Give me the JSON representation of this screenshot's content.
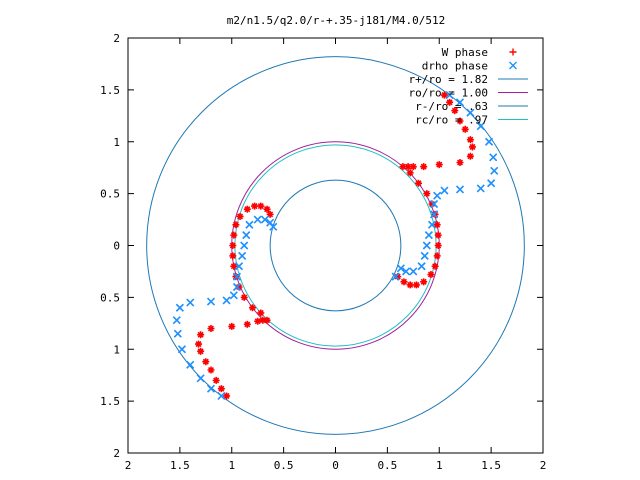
{
  "chart_data": {
    "type": "scatter",
    "title": "m2/n1.5/q2.0/r-+.35-j181/M4.0/512",
    "xlim": [
      -2,
      2
    ],
    "ylim": [
      -2,
      2
    ],
    "x_ticks": [
      {
        "value": -2,
        "label": "2"
      },
      {
        "value": -1.5,
        "label": "1.5"
      },
      {
        "value": -1,
        "label": "1"
      },
      {
        "value": -0.5,
        "label": "0.5"
      },
      {
        "value": 0,
        "label": "0"
      },
      {
        "value": 0.5,
        "label": "0.5"
      },
      {
        "value": 1,
        "label": "1"
      },
      {
        "value": 1.5,
        "label": "1.5"
      },
      {
        "value": 2,
        "label": "2"
      }
    ],
    "y_ticks": [
      {
        "value": 2,
        "label": "2"
      },
      {
        "value": 1.5,
        "label": "1.5"
      },
      {
        "value": 1,
        "label": "1"
      },
      {
        "value": 0.5,
        "label": "0.5"
      },
      {
        "value": 0,
        "label": "0"
      },
      {
        "value": -0.5,
        "label": "0.5"
      },
      {
        "value": -1,
        "label": "1"
      },
      {
        "value": -1.5,
        "label": "1.5"
      },
      {
        "value": -2,
        "label": "2"
      }
    ],
    "grid": false,
    "legend_position": "top-right",
    "series": [
      {
        "name": "W phase",
        "marker": "plus",
        "color": "#ff0000",
        "points": [
          [
            -1.05,
            -1.45
          ],
          [
            -1.1,
            -1.38
          ],
          [
            -1.15,
            -1.3
          ],
          [
            -1.2,
            -1.2
          ],
          [
            -1.25,
            -1.12
          ],
          [
            -1.3,
            -1.02
          ],
          [
            -1.32,
            -0.95
          ],
          [
            -1.3,
            -0.86
          ],
          [
            -1.2,
            -0.8
          ],
          [
            -1.0,
            -0.78
          ],
          [
            -0.85,
            -0.76
          ],
          [
            -0.75,
            -0.73
          ],
          [
            -0.7,
            -0.72
          ],
          [
            -0.66,
            -0.72
          ],
          [
            -0.72,
            -0.65
          ],
          [
            -0.8,
            -0.6
          ],
          [
            -0.88,
            -0.5
          ],
          [
            -0.93,
            -0.4
          ],
          [
            -0.96,
            -0.3
          ],
          [
            -0.98,
            -0.2
          ],
          [
            -0.99,
            -0.1
          ],
          [
            -0.99,
            0.0
          ],
          [
            -0.98,
            0.1
          ],
          [
            -0.96,
            0.2
          ],
          [
            -0.92,
            0.28
          ],
          [
            -0.85,
            0.35
          ],
          [
            -0.78,
            0.38
          ],
          [
            -0.72,
            0.38
          ],
          [
            -0.66,
            0.35
          ],
          [
            -0.63,
            0.3
          ],
          [
            1.05,
            1.45
          ],
          [
            1.1,
            1.38
          ],
          [
            1.15,
            1.3
          ],
          [
            1.2,
            1.2
          ],
          [
            1.25,
            1.12
          ],
          [
            1.3,
            1.02
          ],
          [
            1.32,
            0.95
          ],
          [
            1.3,
            0.86
          ],
          [
            1.2,
            0.8
          ],
          [
            1.0,
            0.78
          ],
          [
            0.85,
            0.76
          ],
          [
            0.75,
            0.76
          ],
          [
            0.7,
            0.76
          ],
          [
            0.65,
            0.76
          ],
          [
            0.72,
            0.7
          ],
          [
            0.8,
            0.6
          ],
          [
            0.88,
            0.5
          ],
          [
            0.93,
            0.4
          ],
          [
            0.96,
            0.3
          ],
          [
            0.98,
            0.2
          ],
          [
            0.99,
            0.1
          ],
          [
            0.99,
            0.0
          ],
          [
            0.98,
            -0.1
          ],
          [
            0.96,
            -0.2
          ],
          [
            0.92,
            -0.28
          ],
          [
            0.85,
            -0.35
          ],
          [
            0.78,
            -0.38
          ],
          [
            0.72,
            -0.38
          ],
          [
            0.66,
            -0.35
          ],
          [
            0.6,
            -0.3
          ]
        ]
      },
      {
        "name": "drho phase",
        "marker": "cross",
        "color": "#1e90ff",
        "points": [
          [
            -1.1,
            -1.45
          ],
          [
            -1.2,
            -1.38
          ],
          [
            -1.3,
            -1.28
          ],
          [
            -1.4,
            -1.15
          ],
          [
            -1.48,
            -1.0
          ],
          [
            -1.52,
            -0.85
          ],
          [
            -1.53,
            -0.72
          ],
          [
            -1.5,
            -0.6
          ],
          [
            -1.4,
            -0.55
          ],
          [
            -1.2,
            -0.54
          ],
          [
            -1.05,
            -0.53
          ],
          [
            -0.98,
            -0.48
          ],
          [
            -0.95,
            -0.4
          ],
          [
            -0.95,
            -0.3
          ],
          [
            -0.93,
            -0.2
          ],
          [
            -0.9,
            -0.1
          ],
          [
            -0.88,
            0.0
          ],
          [
            -0.86,
            0.1
          ],
          [
            -0.83,
            0.2
          ],
          [
            -0.75,
            0.25
          ],
          [
            -0.68,
            0.25
          ],
          [
            -0.63,
            0.22
          ],
          [
            -0.6,
            0.18
          ],
          [
            1.1,
            1.45
          ],
          [
            1.2,
            1.38
          ],
          [
            1.3,
            1.28
          ],
          [
            1.4,
            1.15
          ],
          [
            1.48,
            1.0
          ],
          [
            1.52,
            0.85
          ],
          [
            1.53,
            0.72
          ],
          [
            1.5,
            0.6
          ],
          [
            1.4,
            0.55
          ],
          [
            1.2,
            0.54
          ],
          [
            1.05,
            0.53
          ],
          [
            0.98,
            0.48
          ],
          [
            0.95,
            0.4
          ],
          [
            0.95,
            0.3
          ],
          [
            0.93,
            0.2
          ],
          [
            0.9,
            0.1
          ],
          [
            0.88,
            0.0
          ],
          [
            0.86,
            -0.1
          ],
          [
            0.83,
            -0.2
          ],
          [
            0.75,
            -0.25
          ],
          [
            0.68,
            -0.25
          ],
          [
            0.63,
            -0.22
          ],
          [
            0.58,
            -0.3
          ]
        ]
      }
    ],
    "circles": [
      {
        "label": "r+/ro = 1.82",
        "radius": 1.82,
        "color": "#1f78b4"
      },
      {
        "label": "ro/ro = 1.00",
        "radius": 1.0,
        "color": "#a020a0"
      },
      {
        "label": "r-/ro = .63",
        "radius": 0.63,
        "color": "#1f78b4"
      },
      {
        "label": "rc/ro = .97",
        "radius": 0.97,
        "color": "#20c0c0"
      }
    ]
  }
}
